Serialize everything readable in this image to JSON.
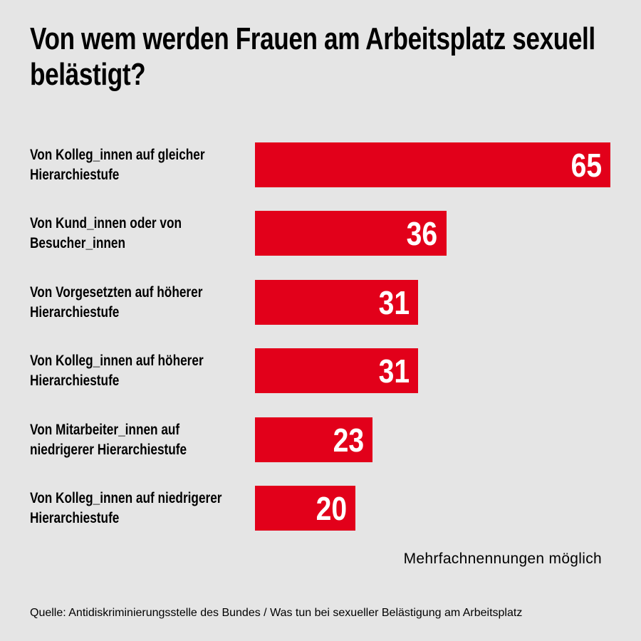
{
  "chart_data": {
    "type": "bar",
    "orientation": "horizontal",
    "title": "Von wem werden Frauen am Arbeitsplatz sexuell belästigt?",
    "categories": [
      "Von Kolleg_innen auf gleicher Hierarchiestufe",
      "Von Kund_innen oder von Besucher_innen",
      "Von Vorgesetzten auf höherer Hierarchiestufe",
      "Von Kolleg_innen auf höherer Hierarchiestufe",
      "Von Mitarbeiter_innen auf niedrigerer Hierarchiestufe",
      "Von Kolleg_innen auf niedrigerer Hierarchiestufe"
    ],
    "labels": [
      [
        "Von Kolleg_innen auf gleicher",
        "Hierarchiestufe"
      ],
      [
        "Von Kund_innen oder von",
        "Besucher_innen"
      ],
      [
        "Von Vorgesetzten auf höherer",
        "Hierarchiestufe"
      ],
      [
        "Von Kolleg_innen auf höherer",
        "Hierarchiestufe"
      ],
      [
        "Von Mitarbeiter_innen auf",
        "niedrigerer Hierarchiestufe"
      ],
      [
        "Von Kolleg_innen auf niedrigerer",
        "Hierarchiestufe"
      ]
    ],
    "values": [
      65,
      36,
      31,
      31,
      23,
      20
    ],
    "value_labels": [
      "65",
      "36",
      "31",
      "31",
      "23",
      "20"
    ],
    "xlabel": "",
    "ylabel": "",
    "grid": false,
    "bar_color": "#e2001a"
  },
  "note": "Mehrfachnennungen möglich",
  "source": "Quelle: Antidiskriminierungsstelle des Bundes / Was tun bei sexueller Belästigung am Arbeitsplatz"
}
